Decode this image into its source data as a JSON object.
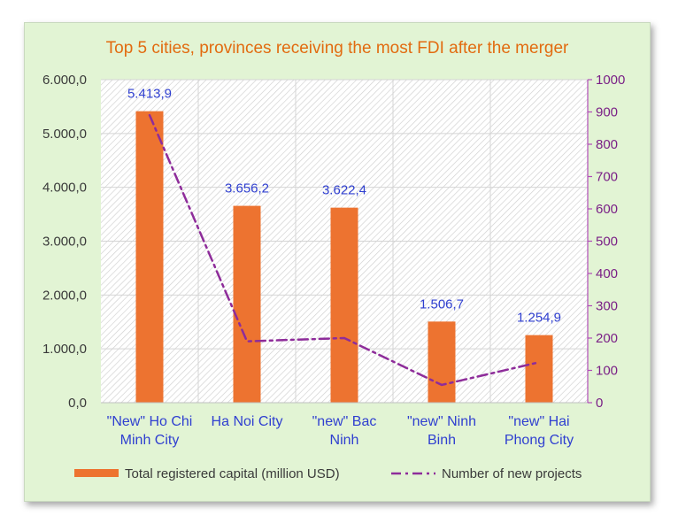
{
  "chart_data": {
    "type": "bar",
    "title": "Top 5 cities, provinces receiving the most FDI after the merger",
    "categories": [
      [
        "\"New\" Ho Chi",
        "Minh City"
      ],
      [
        "Ha Noi City"
      ],
      [
        "\"new\" Bac",
        "Ninh"
      ],
      [
        "\"new\" Ninh",
        "Binh"
      ],
      [
        "\"new\" Hai",
        "Phong City"
      ]
    ],
    "y_left": {
      "range": [
        0,
        6000
      ],
      "ticks": [
        0,
        1000,
        2000,
        3000,
        4000,
        5000,
        6000
      ],
      "tick_labels": [
        "0,0",
        "1.000,0",
        "2.000,0",
        "3.000,0",
        "4.000,0",
        "5.000,0",
        "6.000,0"
      ]
    },
    "y_right": {
      "range": [
        0,
        1000
      ],
      "ticks": [
        0,
        100,
        200,
        300,
        400,
        500,
        600,
        700,
        800,
        900,
        1000
      ],
      "tick_labels": [
        "0",
        "100",
        "200",
        "300",
        "400",
        "500",
        "600",
        "700",
        "800",
        "900",
        "1000"
      ]
    },
    "series": [
      {
        "name": "Total registered capital (million USD)",
        "type": "bar",
        "axis": "left",
        "color": "#ed7330",
        "values": [
          5413.9,
          3656.2,
          3622.4,
          1506.7,
          1254.9
        ],
        "data_labels": [
          "5.413,9",
          "3.656,2",
          "3.622,4",
          "1.506,7",
          "1.254,9"
        ]
      },
      {
        "name": "Number of new projects",
        "type": "line",
        "axis": "right",
        "color": "#8e2c9a",
        "values": [
          890,
          190,
          200,
          55,
          125
        ]
      }
    ],
    "grid": true,
    "legend_position": "bottom"
  }
}
